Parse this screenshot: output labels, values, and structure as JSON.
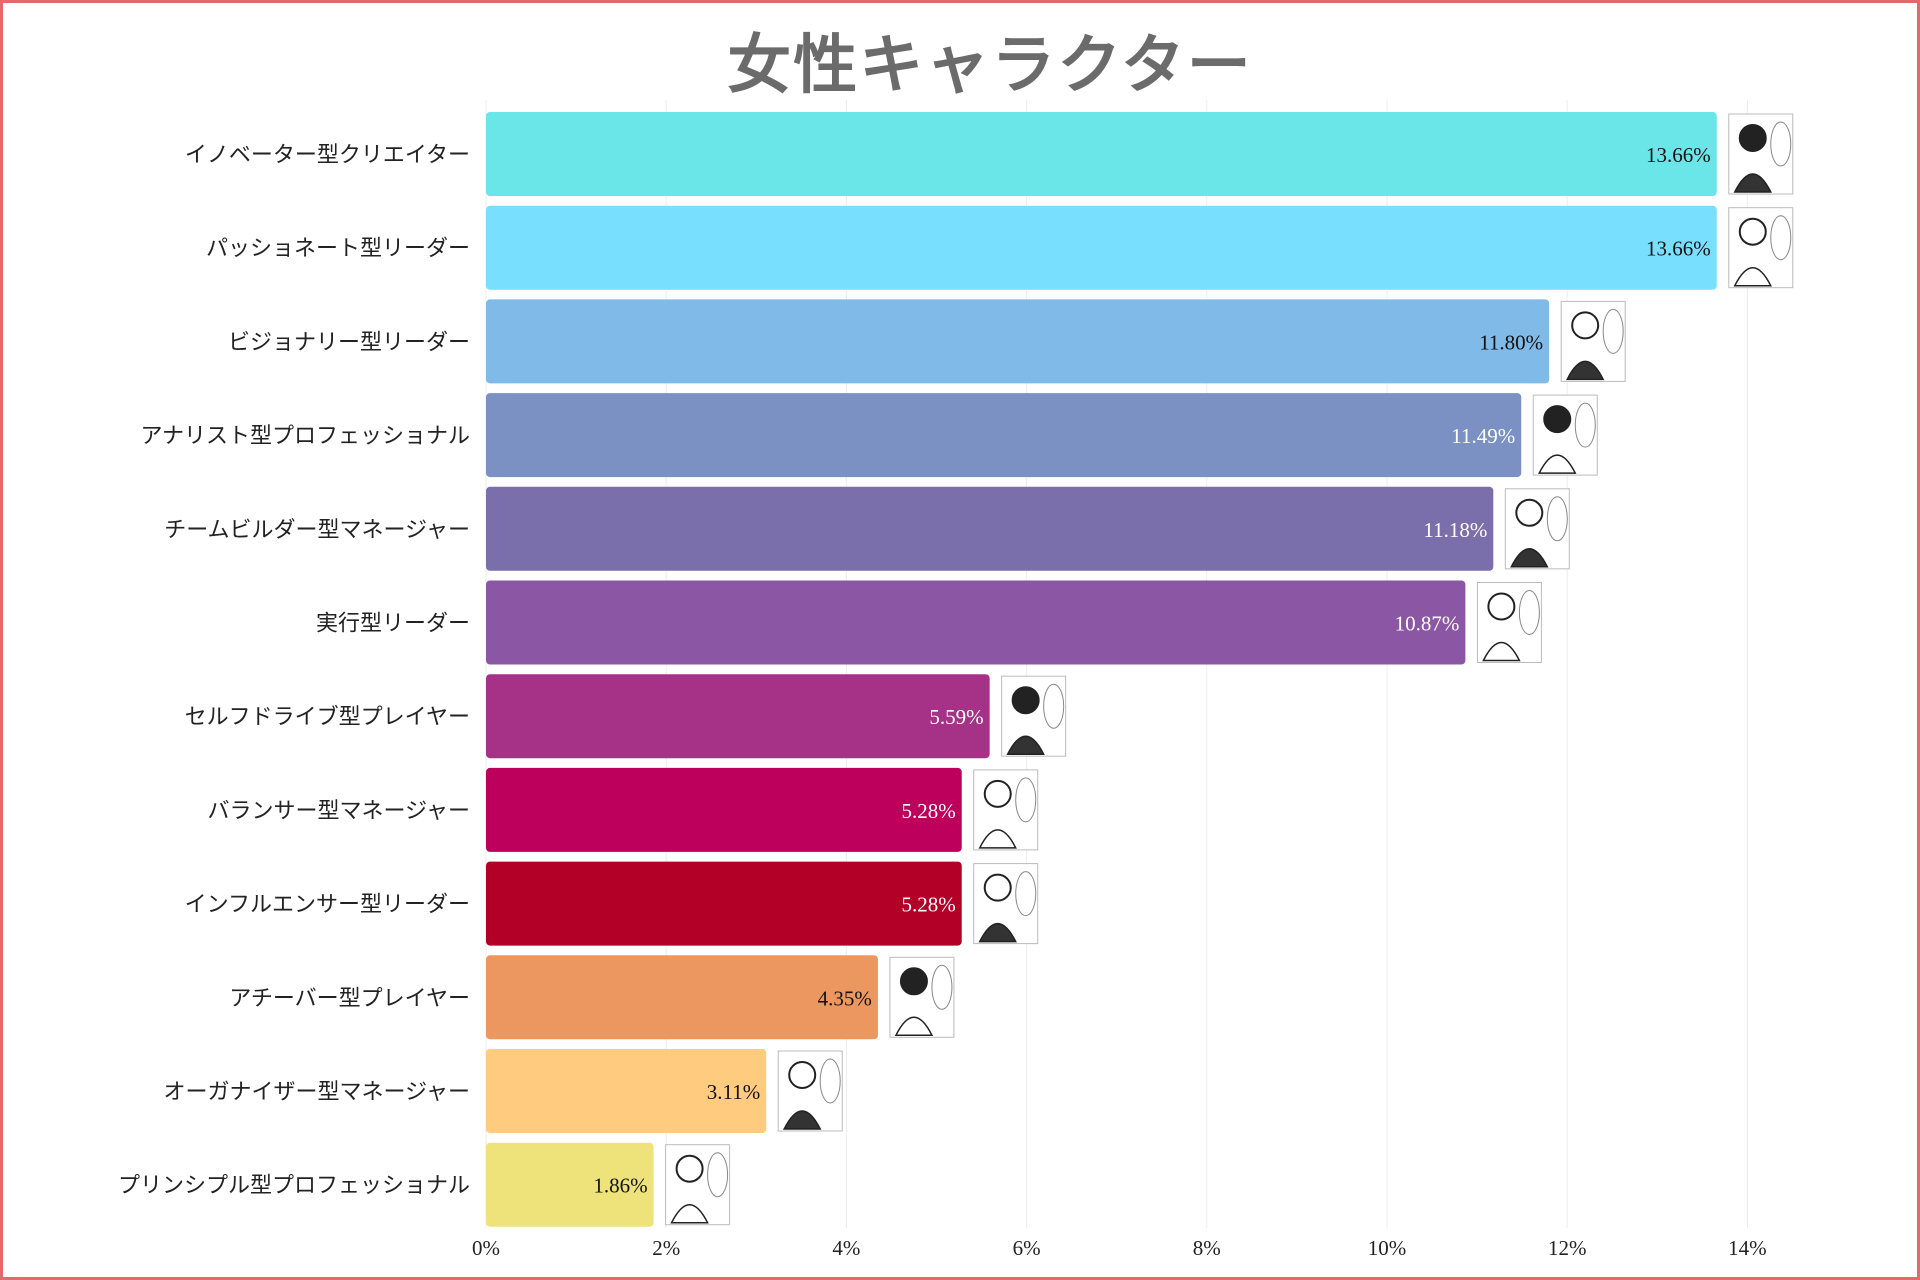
{
  "chart_data": {
    "type": "bar",
    "orientation": "horizontal",
    "title": "女性キャラクター",
    "xlabel": "",
    "ylabel": "",
    "xlim": [
      0,
      15
    ],
    "x_ticks": [
      0,
      2,
      4,
      6,
      8,
      10,
      12,
      14
    ],
    "x_tick_labels": [
      "0%",
      "2%",
      "4%",
      "6%",
      "8%",
      "10%",
      "12%",
      "14%"
    ],
    "grid": true,
    "categories": [
      "イノベーター型クリエイター",
      "パッショネート型リーダー",
      "ビジョナリー型リーダー",
      "アナリスト型プロフェッショナル",
      "チームビルダー型マネージャー",
      "実行型リーダー",
      "セルフドライブ型プレイヤー",
      "バランサー型マネージャー",
      "インフルエンサー型リーダー",
      "アチーバー型プレイヤー",
      "オーガナイザー型マネージャー",
      "プリンシプル型プロフェッショナル"
    ],
    "values": [
      13.66,
      13.66,
      11.8,
      11.49,
      11.18,
      10.87,
      5.59,
      5.28,
      5.28,
      4.35,
      3.11,
      1.86
    ],
    "value_labels": [
      "13.66%",
      "13.66%",
      "11.80%",
      "11.49%",
      "11.18%",
      "10.87%",
      "5.59%",
      "5.28%",
      "5.28%",
      "4.35%",
      "3.11%",
      "1.86%"
    ],
    "colors": [
      "#6ae6e8",
      "#79dffe",
      "#80bae8",
      "#7b91c3",
      "#7a6fab",
      "#8b56a3",
      "#a63288",
      "#bd005b",
      "#b20027",
      "#ec9660",
      "#fecb7f",
      "#ede37a"
    ],
    "label_colors": [
      "#111111",
      "#111111",
      "#111111",
      "#ffffff",
      "#ffffff",
      "#ffffff",
      "#ffffff",
      "#ffffff",
      "#ffffff",
      "#111111",
      "#111111",
      "#111111"
    ]
  }
}
